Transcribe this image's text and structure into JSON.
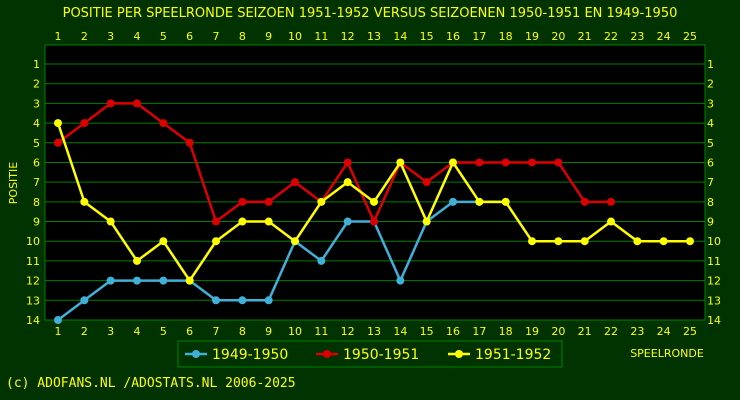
{
  "footer_text": "(c) ADOFANS.NL /ADOSTATS.NL 2006-2025",
  "colors": {
    "background": "#003300",
    "plot_area": "#000000",
    "gridlines": "#008000",
    "text": "#ffff00",
    "legend_box_background": "#003300",
    "legend_box_border": "#008000"
  },
  "chart_data": {
    "type": "line",
    "title": "POSITIE PER SPEELRONDE SEIZOEN 1951-1952 VERSUS SEIZOENEN 1950-1951 EN 1949-1950",
    "xlabel": "SPEELRONDE",
    "ylabel": "POSITIE",
    "x": [
      1,
      2,
      3,
      4,
      5,
      6,
      7,
      8,
      9,
      10,
      11,
      12,
      13,
      14,
      15,
      16,
      17,
      18,
      19,
      20,
      21,
      22,
      23,
      24,
      25
    ],
    "xlim": [
      1,
      25
    ],
    "ylim": [
      1,
      14
    ],
    "y_inverted": true,
    "y_ticks": [
      1,
      2,
      3,
      4,
      5,
      6,
      7,
      8,
      9,
      10,
      11,
      12,
      13,
      14
    ],
    "x_axis_labels_position": "top and bottom",
    "y_axis_labels_position": "left and right",
    "grid": true,
    "legend_position": "bottom-center",
    "series": [
      {
        "name": "1949-1950",
        "color": "#40b0d8",
        "values": [
          14,
          13,
          12,
          12,
          12,
          12,
          13,
          13,
          13,
          10,
          11,
          9,
          9,
          12,
          9,
          8,
          8,
          8,
          null,
          null,
          null,
          null,
          null,
          null,
          null
        ]
      },
      {
        "name": "1950-1951",
        "color": "#dd0000",
        "values": [
          5,
          4,
          3,
          3,
          4,
          5,
          9,
          8,
          8,
          7,
          8,
          6,
          9,
          6,
          7,
          6,
          6,
          6,
          6,
          6,
          8,
          8,
          null,
          null,
          null
        ]
      },
      {
        "name": "1951-1952",
        "color": "#ffff00",
        "values": [
          4,
          8,
          9,
          11,
          10,
          12,
          10,
          9,
          9,
          10,
          8,
          7,
          8,
          6,
          9,
          6,
          8,
          8,
          10,
          10,
          10,
          9,
          10,
          10,
          10
        ]
      }
    ]
  }
}
